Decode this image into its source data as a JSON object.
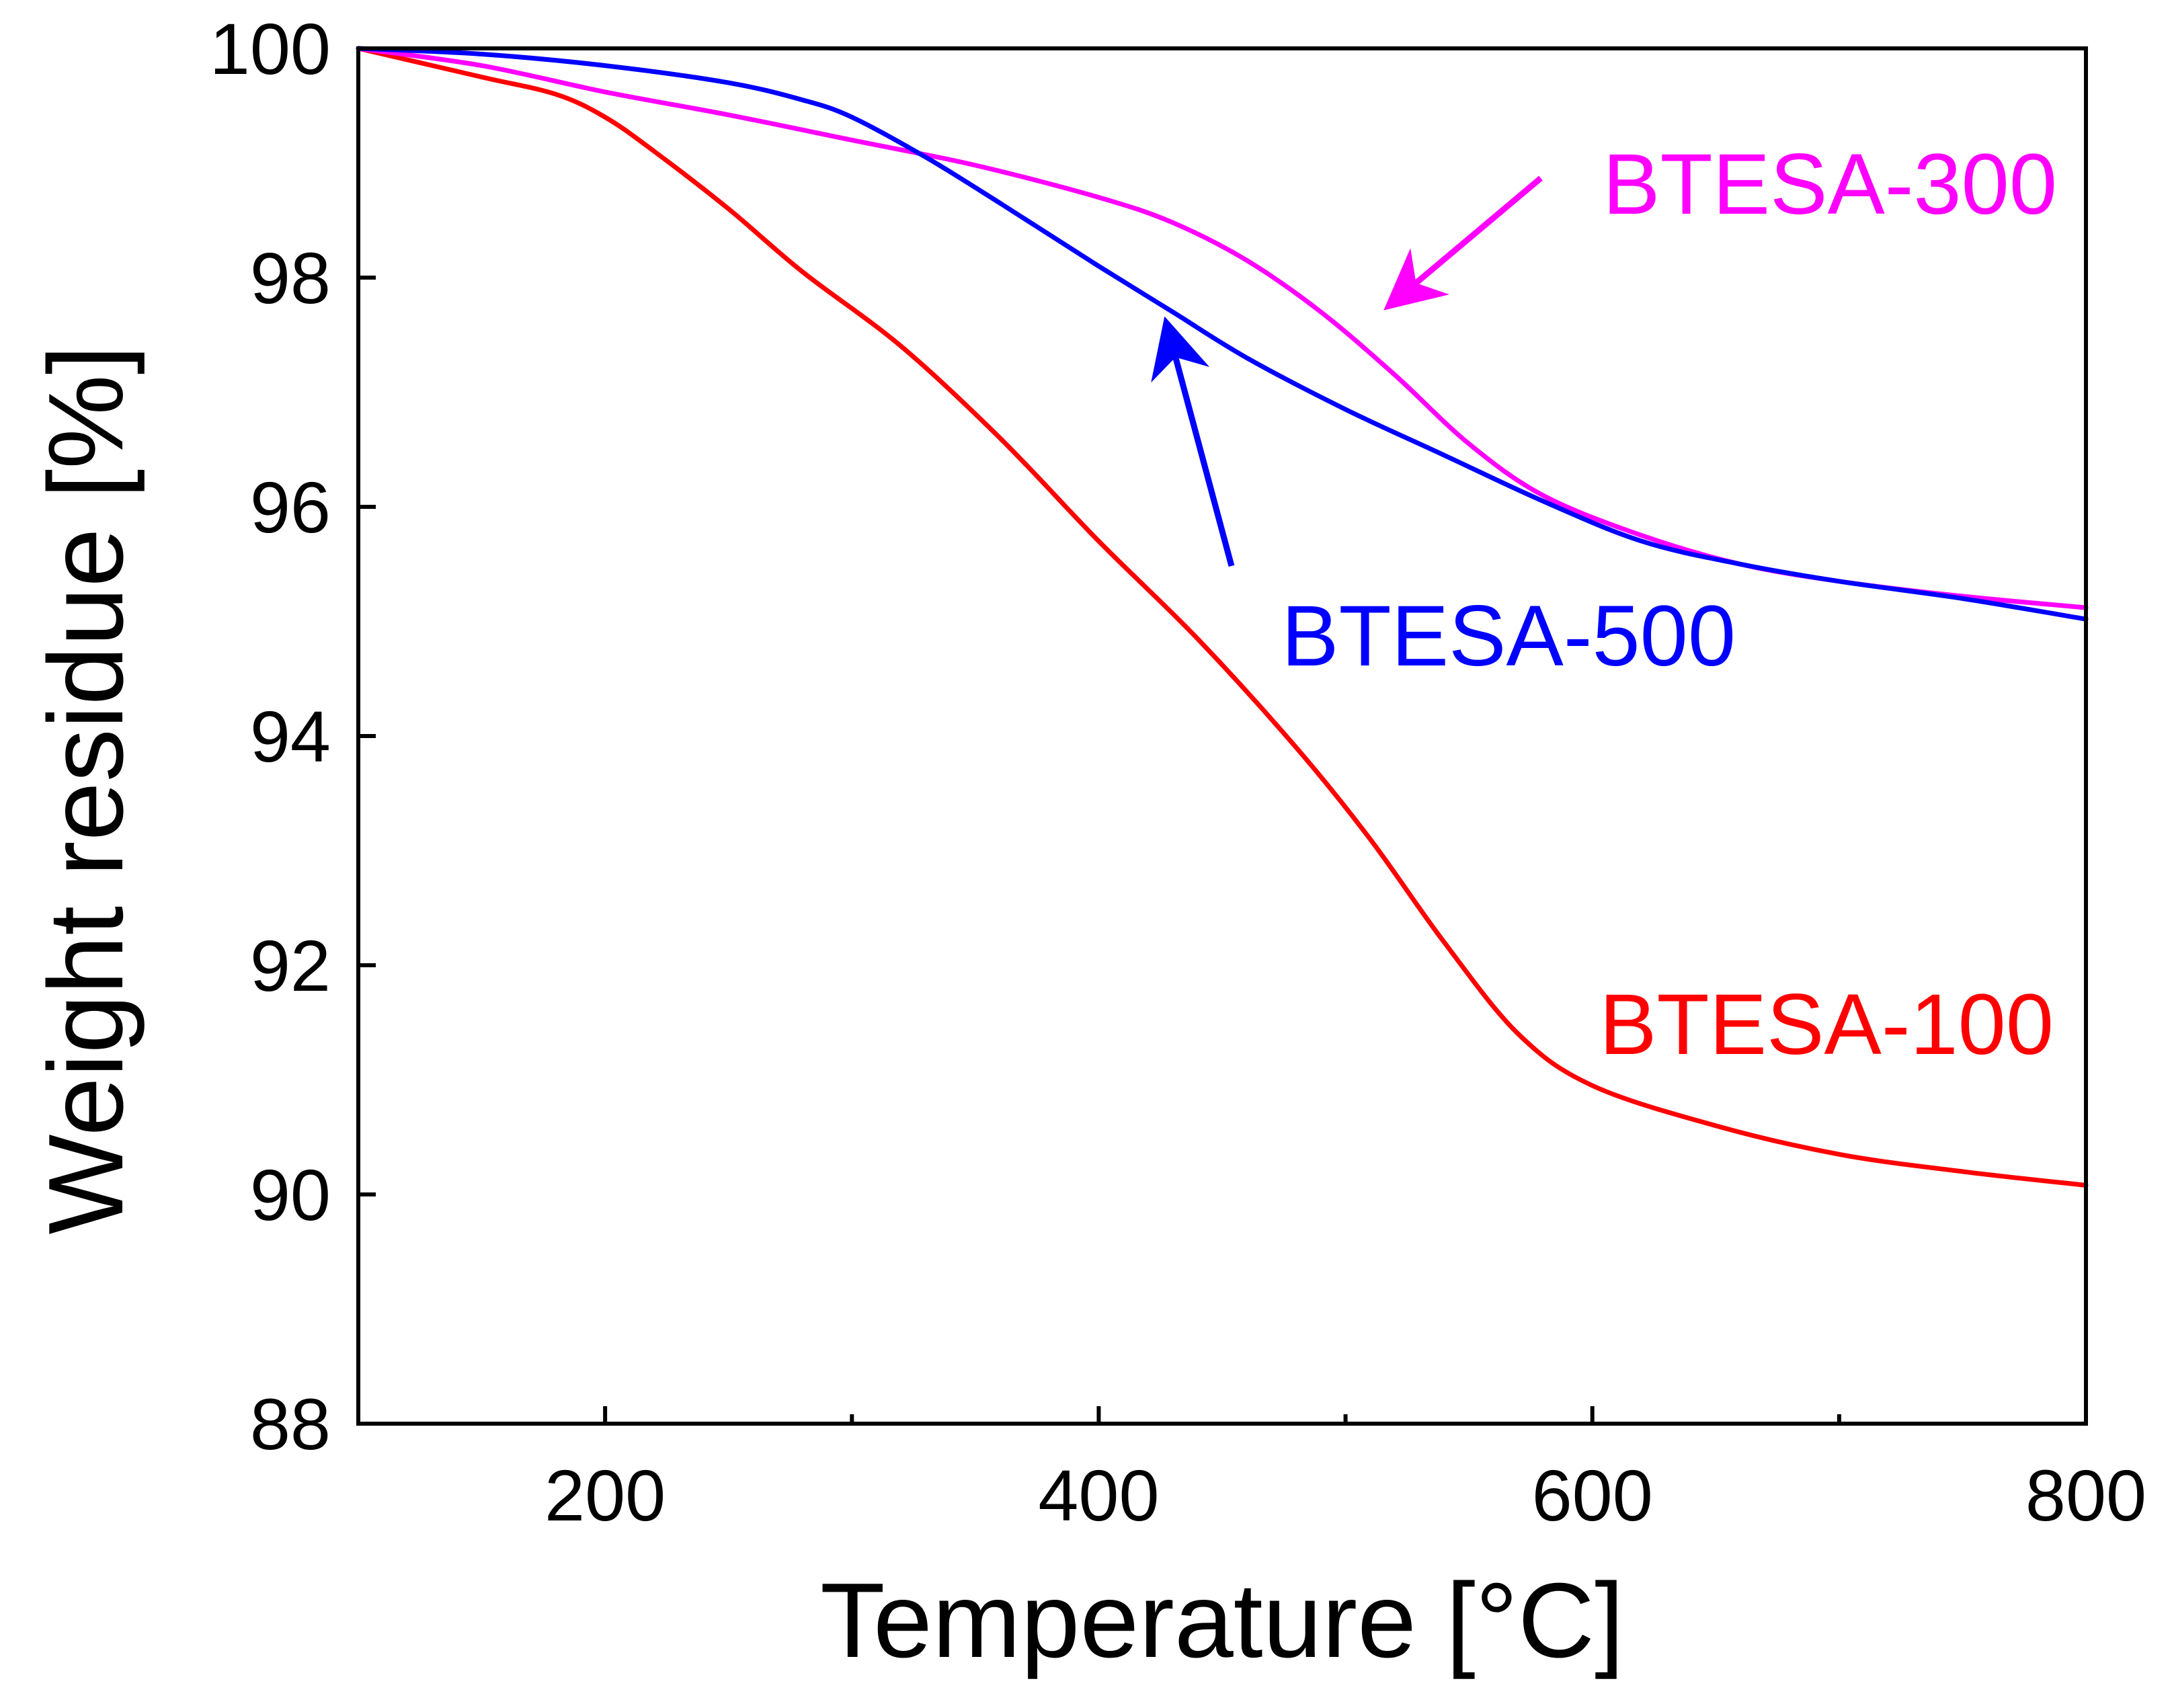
{
  "chart_data": {
    "type": "line",
    "title": "",
    "xlabel": "Temperature [°C]",
    "ylabel": "Weight residue [%]",
    "xlim": [
      100,
      800
    ],
    "ylim": [
      88,
      100
    ],
    "x_ticks": [
      200,
      400,
      600,
      800
    ],
    "x_minor_ticks": [
      300,
      500,
      700
    ],
    "y_ticks": [
      88,
      90,
      92,
      94,
      96,
      98,
      100
    ],
    "grid": false,
    "series": [
      {
        "name": "BTESA-100",
        "color": "#ff0000",
        "x": [
          100,
          150,
          180,
          200,
          220,
          250,
          280,
          320,
          360,
          400,
          440,
          480,
          510,
          540,
          570,
          600,
          650,
          700,
          750,
          800
        ],
        "y": [
          100.0,
          99.75,
          99.6,
          99.4,
          99.1,
          98.6,
          98.05,
          97.4,
          96.6,
          95.7,
          94.85,
          93.9,
          93.1,
          92.2,
          91.4,
          90.95,
          90.6,
          90.35,
          90.2,
          90.08
        ]
      },
      {
        "name": "BTESA-300",
        "color": "#ff00ff",
        "x": [
          100,
          150,
          200,
          250,
          300,
          350,
          400,
          430,
          460,
          490,
          520,
          550,
          580,
          620,
          660,
          700,
          750,
          800
        ],
        "y": [
          100.0,
          99.85,
          99.62,
          99.42,
          99.2,
          98.98,
          98.7,
          98.48,
          98.15,
          97.7,
          97.15,
          96.55,
          96.1,
          95.75,
          95.5,
          95.35,
          95.22,
          95.12
        ]
      },
      {
        "name": "BTESA-500",
        "color": "#0000ff",
        "x": [
          100,
          150,
          200,
          250,
          280,
          300,
          330,
          360,
          400,
          430,
          460,
          500,
          540,
          580,
          620,
          660,
          700,
          750,
          800
        ],
        "y": [
          100.0,
          99.95,
          99.85,
          99.7,
          99.55,
          99.4,
          99.05,
          98.65,
          98.1,
          97.7,
          97.3,
          96.85,
          96.45,
          96.05,
          95.7,
          95.5,
          95.35,
          95.2,
          95.02
        ]
      }
    ],
    "annotations": [
      {
        "text": "BTESA-300",
        "color": "#ff00ff",
        "target": [
          520,
          97.75
        ]
      },
      {
        "text": "BTESA-500",
        "color": "#0000ff",
        "target": [
          425,
          97.65
        ]
      },
      {
        "text": "BTESA-100",
        "color": "#ff0000"
      }
    ]
  }
}
